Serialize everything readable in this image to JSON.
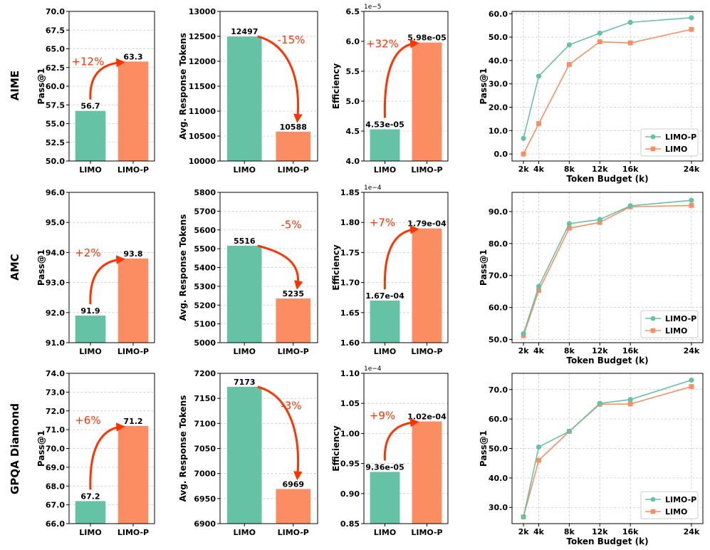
{
  "colors": {
    "limo": "#66c2a5",
    "limop": "#fc8d62",
    "arrow": "#ff3300",
    "grid": "#c8c8c8"
  },
  "rows": [
    "AIME",
    "AMC",
    "GPQA Diamond"
  ],
  "chart_data": [
    {
      "type": "bar",
      "name": "aime-pass",
      "categories": [
        "LIMO",
        "LIMO-P"
      ],
      "values": [
        56.7,
        63.3
      ],
      "labels": [
        "56.7",
        "63.3"
      ],
      "ylabel": "Pass@1",
      "ylim": [
        50,
        70
      ],
      "ticks": [
        "50.0",
        "52.5",
        "55.0",
        "57.5",
        "60.0",
        "62.5",
        "65.0",
        "67.5",
        "70.0"
      ],
      "change": "+12%",
      "arrow": "up",
      "exponent": ""
    },
    {
      "type": "bar",
      "name": "aime-tokens",
      "categories": [
        "LIMO",
        "LIMO-P"
      ],
      "values": [
        12497,
        10588
      ],
      "labels": [
        "12497",
        "10588"
      ],
      "ylabel": "Avg. Response Tokens",
      "ylim": [
        10000,
        13000
      ],
      "ticks": [
        "10000",
        "10500",
        "11000",
        "11500",
        "12000",
        "12500",
        "13000"
      ],
      "change": "-15%",
      "arrow": "down",
      "exponent": ""
    },
    {
      "type": "bar",
      "name": "aime-efficiency",
      "categories": [
        "LIMO",
        "LIMO-P"
      ],
      "values": [
        4.53,
        5.98
      ],
      "labels": [
        "4.53e-05",
        "5.98e-05"
      ],
      "ylabel": "Efficiency",
      "ylim": [
        4.0,
        6.5
      ],
      "ticks": [
        "4.0",
        "4.5",
        "5.0",
        "5.5",
        "6.0",
        "6.5"
      ],
      "change": "+32%",
      "arrow": "up",
      "exponent": "1e−5"
    },
    {
      "type": "line",
      "name": "aime-budget",
      "x": [
        2,
        4,
        8,
        12,
        16,
        24
      ],
      "xticks": [
        "2k",
        "4k",
        "8k",
        "12k",
        "16k",
        "24k"
      ],
      "xlim": [
        0.5,
        25.5
      ],
      "xlabel": "Token Budget (k)",
      "ylabel": "Pass@1",
      "ylim": [
        -3,
        61
      ],
      "ticks": [
        "0.0",
        "10.0",
        "20.0",
        "30.0",
        "40.0",
        "50.0",
        "60.0"
      ],
      "tickvals": [
        0,
        10,
        20,
        30,
        40,
        50,
        60
      ],
      "legend": "bottom-right",
      "series": [
        {
          "name": "LIMO-P",
          "values": [
            6.7,
            33.3,
            46.7,
            51.7,
            56.3,
            58.3
          ]
        },
        {
          "name": "LIMO",
          "values": [
            0.0,
            13.0,
            38.3,
            48.0,
            47.5,
            53.3
          ]
        }
      ]
    },
    {
      "type": "bar",
      "name": "amc-pass",
      "categories": [
        "LIMO",
        "LIMO-P"
      ],
      "values": [
        91.9,
        93.8
      ],
      "labels": [
        "91.9",
        "93.8"
      ],
      "ylabel": "Pass@1",
      "ylim": [
        91,
        96
      ],
      "ticks": [
        "91.0",
        "92.0",
        "93.0",
        "94.0",
        "95.0",
        "96.0"
      ],
      "change": "+2%",
      "arrow": "up",
      "exponent": ""
    },
    {
      "type": "bar",
      "name": "amc-tokens",
      "categories": [
        "LIMO",
        "LIMO-P"
      ],
      "values": [
        5516,
        5235
      ],
      "labels": [
        "5516",
        "5235"
      ],
      "ylabel": "Avg. Response Tokens",
      "ylim": [
        5000,
        5800
      ],
      "ticks": [
        "5000",
        "5100",
        "5200",
        "5300",
        "5400",
        "5500",
        "5600",
        "5700",
        "5800"
      ],
      "change": "-5%",
      "arrow": "down",
      "exponent": ""
    },
    {
      "type": "bar",
      "name": "amc-efficiency",
      "categories": [
        "LIMO",
        "LIMO-P"
      ],
      "values": [
        1.67,
        1.79
      ],
      "labels": [
        "1.67e-04",
        "1.79e-04"
      ],
      "ylabel": "Efficiency",
      "ylim": [
        1.6,
        1.85
      ],
      "ticks": [
        "1.60",
        "1.65",
        "1.70",
        "1.75",
        "1.80",
        "1.85"
      ],
      "change": "+7%",
      "arrow": "up",
      "exponent": "1e−4"
    },
    {
      "type": "line",
      "name": "amc-budget",
      "x": [
        2,
        4,
        8,
        12,
        16,
        24
      ],
      "xticks": [
        "2k",
        "4k",
        "8k",
        "12k",
        "16k",
        "24k"
      ],
      "xlim": [
        0.5,
        25.5
      ],
      "xlabel": "Token Budget (k)",
      "ylabel": "Pass@1",
      "ylim": [
        49,
        96
      ],
      "ticks": [
        "50.0",
        "60.0",
        "70.0",
        "80.0",
        "90.0"
      ],
      "tickvals": [
        50,
        60,
        70,
        80,
        90
      ],
      "legend": "bottom-right",
      "series": [
        {
          "name": "LIMO-P",
          "values": [
            51.8,
            66.6,
            86.2,
            87.5,
            91.8,
            93.5
          ]
        },
        {
          "name": "LIMO",
          "values": [
            51.2,
            65.3,
            84.8,
            86.6,
            91.5,
            91.9
          ]
        }
      ]
    },
    {
      "type": "bar",
      "name": "gpqa-pass",
      "categories": [
        "LIMO",
        "LIMO-P"
      ],
      "values": [
        67.2,
        71.2
      ],
      "labels": [
        "67.2",
        "71.2"
      ],
      "ylabel": "Pass@1",
      "ylim": [
        66,
        74
      ],
      "ticks": [
        "66.0",
        "67.0",
        "68.0",
        "69.0",
        "70.0",
        "71.0",
        "72.0",
        "73.0",
        "74.0"
      ],
      "change": "+6%",
      "arrow": "up",
      "exponent": ""
    },
    {
      "type": "bar",
      "name": "gpqa-tokens",
      "categories": [
        "LIMO",
        "LIMO-P"
      ],
      "values": [
        7173,
        6969
      ],
      "labels": [
        "7173",
        "6969"
      ],
      "ylabel": "Avg. Response Tokens",
      "ylim": [
        6900,
        7200
      ],
      "ticks": [
        "6900",
        "6950",
        "7000",
        "7050",
        "7100",
        "7150",
        "7200"
      ],
      "change": "-3%",
      "arrow": "down",
      "exponent": ""
    },
    {
      "type": "bar",
      "name": "gpqa-efficiency",
      "categories": [
        "LIMO",
        "LIMO-P"
      ],
      "values": [
        0.936,
        1.02
      ],
      "labels": [
        "9.36e-05",
        "1.02e-04"
      ],
      "ylabel": "Efficiency",
      "ylim": [
        0.85,
        1.1
      ],
      "ticks": [
        "0.85",
        "0.90",
        "0.95",
        "1.00",
        "1.05",
        "1.10"
      ],
      "change": "+9%",
      "arrow": "up",
      "exponent": "1e−4"
    },
    {
      "type": "line",
      "name": "gpqa-budget",
      "x": [
        2,
        4,
        8,
        12,
        16,
        24
      ],
      "xticks": [
        "2k",
        "4k",
        "8k",
        "12k",
        "16k",
        "24k"
      ],
      "xlim": [
        0.5,
        25.5
      ],
      "xlabel": "Token Budget (k)",
      "ylabel": "Pass@1",
      "ylim": [
        24.5,
        75.5
      ],
      "ticks": [
        "30.0",
        "40.0",
        "50.0",
        "60.0",
        "70.0"
      ],
      "tickvals": [
        30,
        40,
        50,
        60,
        70
      ],
      "legend": "bottom-right",
      "series": [
        {
          "name": "LIMO-P",
          "values": [
            26.8,
            50.5,
            55.8,
            65.3,
            66.6,
            73.2
          ]
        },
        {
          "name": "LIMO",
          "values": [
            26.8,
            46.0,
            55.8,
            65.0,
            65.1,
            71.0
          ]
        }
      ]
    }
  ]
}
